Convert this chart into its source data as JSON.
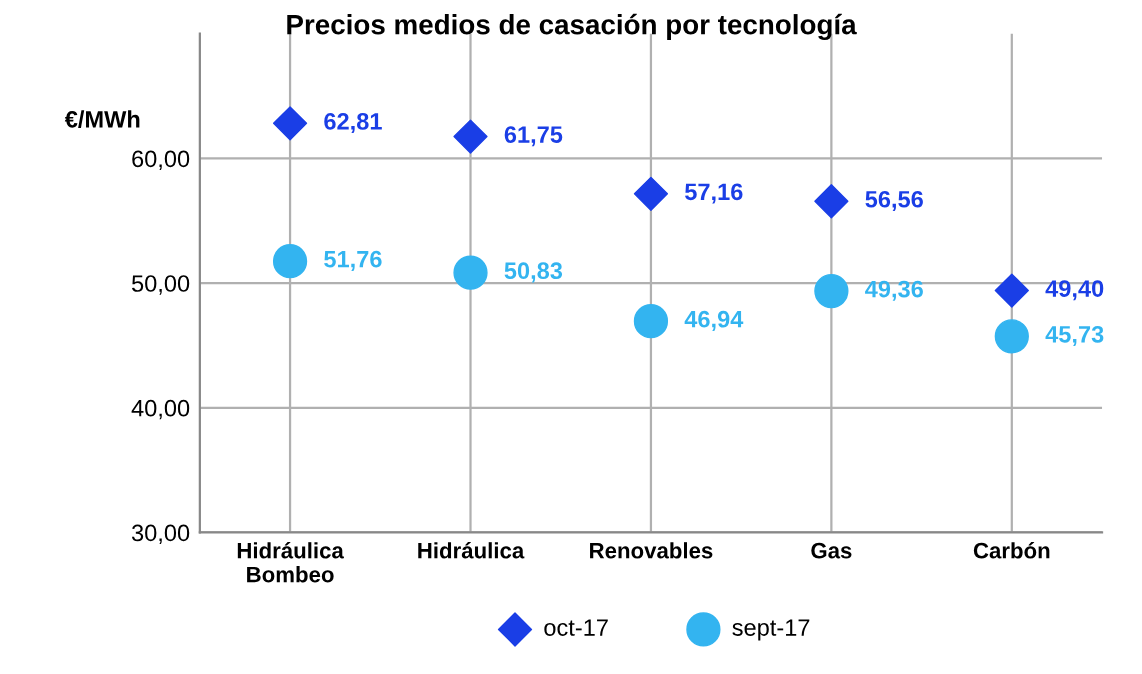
{
  "chart_data": {
    "type": "scatter",
    "title": "Precios medios de casación por tecnología",
    "ylabel": "€/MWh",
    "categories": [
      "Hidráulica\nBombeo",
      "Hidráulica",
      "Renovables",
      "Gas",
      "Carbón"
    ],
    "series": [
      {
        "name": "oct-17",
        "color": "#1a3ee6",
        "marker": "diamond",
        "values": [
          62.81,
          61.75,
          57.16,
          56.56,
          49.4
        ],
        "value_labels": [
          "62,81",
          "61,75",
          "57,16",
          "56,56",
          "49,40"
        ]
      },
      {
        "name": "sept-17",
        "color": "#33b4f0",
        "marker": "circle",
        "values": [
          51.76,
          50.83,
          46.94,
          49.36,
          45.73
        ],
        "value_labels": [
          "51,76",
          "50,83",
          "46,94",
          "49,36",
          "45,73"
        ]
      }
    ],
    "ylim": [
      30,
      70
    ],
    "yticks": [
      {
        "value": 30,
        "label": "30,00"
      },
      {
        "value": 40,
        "label": "40,00"
      },
      {
        "value": 50,
        "label": "50,00"
      },
      {
        "value": 60,
        "label": "60,00"
      }
    ],
    "grid": true,
    "legend": "bottom"
  }
}
